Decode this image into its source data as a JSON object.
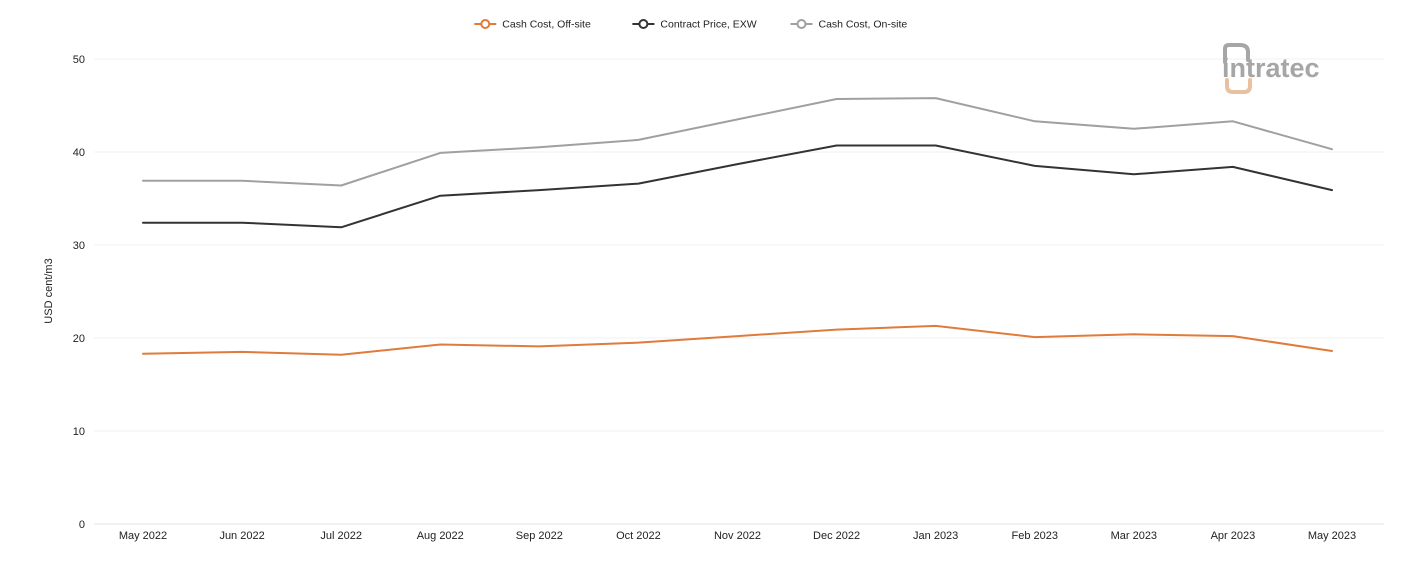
{
  "chart_data": {
    "type": "line",
    "title": "",
    "xlabel": "",
    "ylabel": "USD cent/m3",
    "ylim": [
      0,
      50
    ],
    "yticks": [
      0,
      10,
      20,
      30,
      40,
      50
    ],
    "grid": true,
    "legend_position": "top-center",
    "categories": [
      "May 2022",
      "Jun 2022",
      "Jul 2022",
      "Aug 2022",
      "Sep 2022",
      "Oct 2022",
      "Nov 2022",
      "Dec 2022",
      "Jan 2023",
      "Feb 2023",
      "Mar 2023",
      "Apr 2023",
      "May 2023"
    ],
    "series": [
      {
        "name": "Cash Cost, Off-site",
        "color": "#e07b39",
        "values": [
          18.3,
          18.5,
          18.2,
          19.3,
          19.1,
          19.5,
          20.2,
          20.9,
          21.3,
          20.1,
          20.4,
          20.2,
          18.6
        ]
      },
      {
        "name": "Contract Price, EXW",
        "color": "#333333",
        "values": [
          32.4,
          32.4,
          31.9,
          35.3,
          35.9,
          36.6,
          38.7,
          40.7,
          40.7,
          38.5,
          37.6,
          38.4,
          35.9
        ]
      },
      {
        "name": "Cash Cost, On-site",
        "color": "#a0a0a0",
        "values": [
          36.9,
          36.9,
          36.4,
          39.9,
          40.5,
          41.3,
          43.5,
          45.7,
          45.8,
          43.3,
          42.5,
          43.3,
          40.3
        ]
      }
    ]
  },
  "logo": {
    "text": "intratec",
    "colors": {
      "gray": "#a6a6a6",
      "orange": "#e8c2a0"
    }
  }
}
